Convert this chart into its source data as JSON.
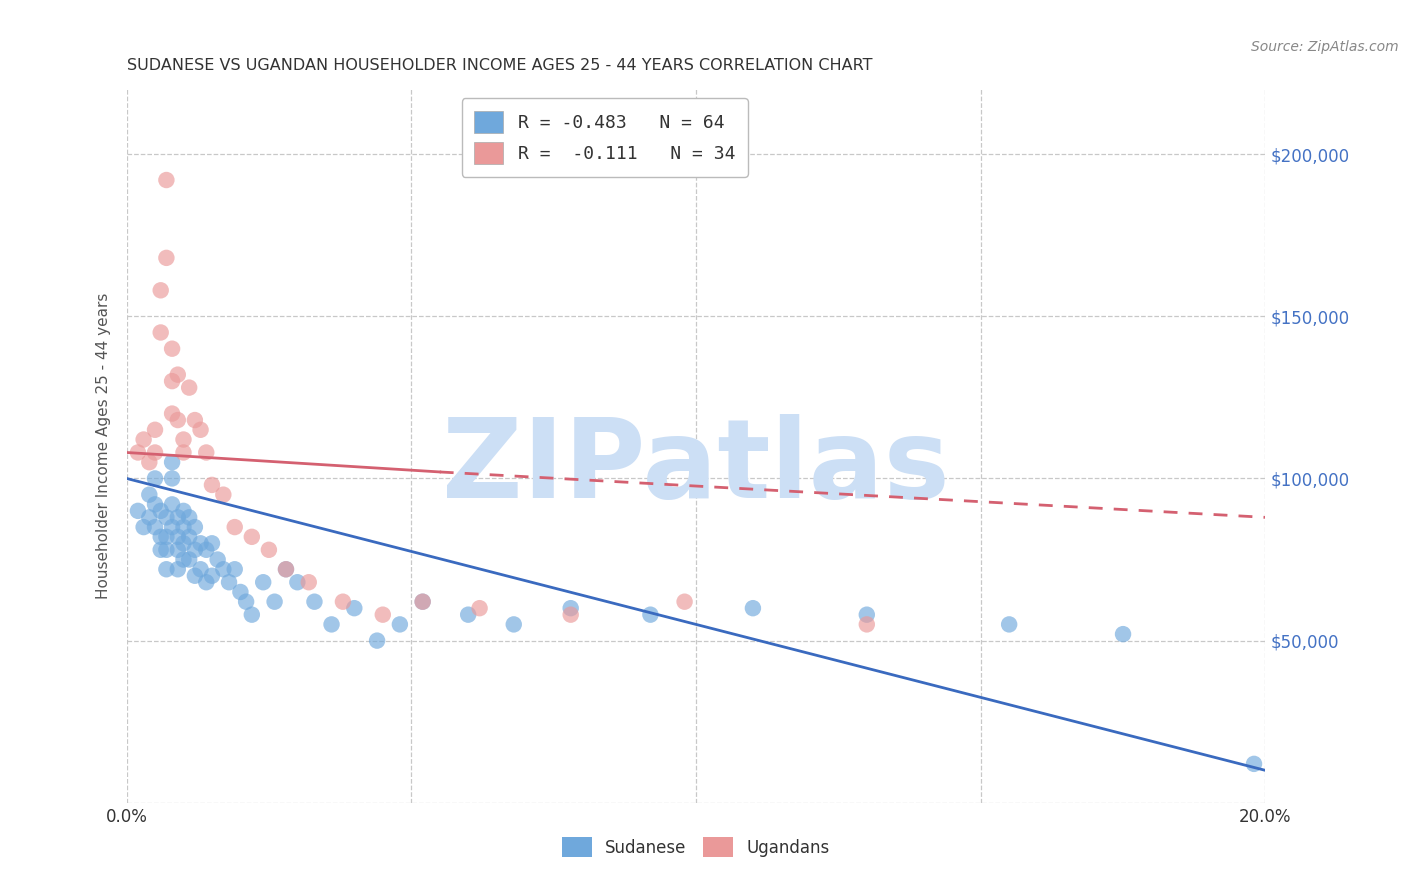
{
  "title": "SUDANESE VS UGANDAN HOUSEHOLDER INCOME AGES 25 - 44 YEARS CORRELATION CHART",
  "source": "Source: ZipAtlas.com",
  "ylabel": "Householder Income Ages 25 - 44 years",
  "xlim": [
    0.0,
    0.2
  ],
  "ylim": [
    0,
    220000
  ],
  "yticks": [
    0,
    50000,
    100000,
    150000,
    200000
  ],
  "ytick_labels": [
    "",
    "$50,000",
    "$100,000",
    "$150,000",
    "$200,000"
  ],
  "xticks": [
    0.0,
    0.05,
    0.1,
    0.15,
    0.2
  ],
  "xtick_labels": [
    "0.0%",
    "",
    "",
    "",
    "20.0%"
  ],
  "sudanese_color": "#6fa8dc",
  "ugandan_color": "#ea9999",
  "legend_label_sudanese": "R = -0.483   N = 64",
  "legend_label_ugandan": "R =  -0.111   N = 34",
  "background_color": "#ffffff",
  "grid_color": "#c8c8c8",
  "title_color": "#333333",
  "axis_label_color": "#555555",
  "right_tick_color": "#4472c4",
  "watermark_text": "ZIPatlas",
  "watermark_color": "#ccdff5",
  "sudanese_x": [
    0.002,
    0.003,
    0.004,
    0.004,
    0.005,
    0.005,
    0.005,
    0.006,
    0.006,
    0.006,
    0.007,
    0.007,
    0.007,
    0.007,
    0.008,
    0.008,
    0.008,
    0.008,
    0.009,
    0.009,
    0.009,
    0.009,
    0.01,
    0.01,
    0.01,
    0.01,
    0.011,
    0.011,
    0.011,
    0.012,
    0.012,
    0.012,
    0.013,
    0.013,
    0.014,
    0.014,
    0.015,
    0.015,
    0.016,
    0.017,
    0.018,
    0.019,
    0.02,
    0.021,
    0.022,
    0.024,
    0.026,
    0.028,
    0.03,
    0.033,
    0.036,
    0.04,
    0.044,
    0.048,
    0.052,
    0.06,
    0.068,
    0.078,
    0.092,
    0.11,
    0.13,
    0.155,
    0.175,
    0.198
  ],
  "sudanese_y": [
    90000,
    85000,
    95000,
    88000,
    100000,
    92000,
    85000,
    90000,
    82000,
    78000,
    88000,
    82000,
    78000,
    72000,
    105000,
    100000,
    92000,
    85000,
    88000,
    82000,
    78000,
    72000,
    90000,
    85000,
    80000,
    75000,
    88000,
    82000,
    75000,
    85000,
    78000,
    70000,
    80000,
    72000,
    78000,
    68000,
    80000,
    70000,
    75000,
    72000,
    68000,
    72000,
    65000,
    62000,
    58000,
    68000,
    62000,
    72000,
    68000,
    62000,
    55000,
    60000,
    50000,
    55000,
    62000,
    58000,
    55000,
    60000,
    58000,
    60000,
    58000,
    55000,
    52000,
    12000
  ],
  "ugandan_x": [
    0.002,
    0.003,
    0.004,
    0.005,
    0.005,
    0.006,
    0.006,
    0.007,
    0.007,
    0.008,
    0.008,
    0.008,
    0.009,
    0.009,
    0.01,
    0.01,
    0.011,
    0.012,
    0.013,
    0.014,
    0.015,
    0.017,
    0.019,
    0.022,
    0.025,
    0.028,
    0.032,
    0.038,
    0.045,
    0.052,
    0.062,
    0.078,
    0.098,
    0.13
  ],
  "ugandan_y": [
    108000,
    112000,
    105000,
    115000,
    108000,
    145000,
    158000,
    168000,
    192000,
    140000,
    130000,
    120000,
    118000,
    132000,
    112000,
    108000,
    128000,
    118000,
    115000,
    108000,
    98000,
    95000,
    85000,
    82000,
    78000,
    72000,
    68000,
    62000,
    58000,
    62000,
    60000,
    58000,
    62000,
    55000
  ],
  "trend_blue_x0": 0.0,
  "trend_blue_y0": 100000,
  "trend_blue_x1": 0.2,
  "trend_blue_y1": 10000,
  "trend_pink_solid_x0": 0.0,
  "trend_pink_solid_y0": 108000,
  "trend_pink_solid_x1": 0.055,
  "trend_pink_solid_y1": 102000,
  "trend_pink_dash_x0": 0.055,
  "trend_pink_dash_y0": 102000,
  "trend_pink_dash_x1": 0.2,
  "trend_pink_dash_y1": 88000,
  "bottom_legend_labels": [
    "Sudanese",
    "Ugandans"
  ]
}
